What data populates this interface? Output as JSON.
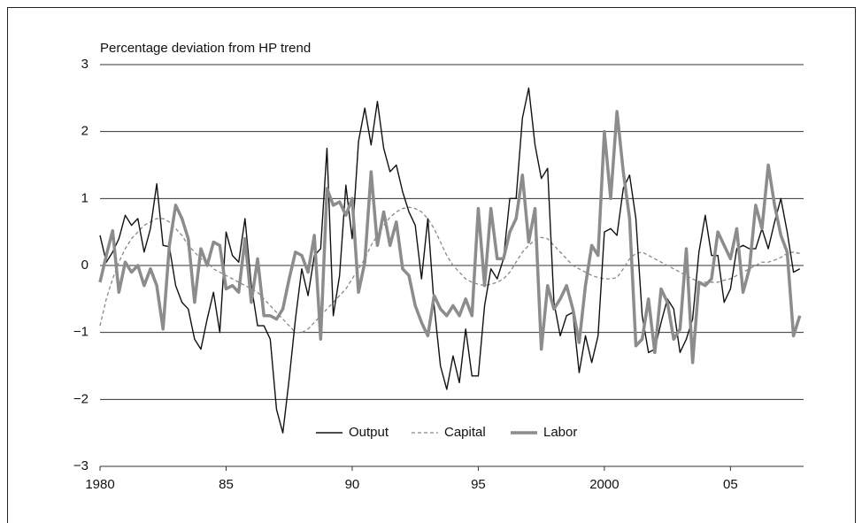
{
  "chart_data": {
    "type": "line",
    "title": "Percentage deviation from HP trend",
    "x": [
      1980,
      1980.25,
      1980.5,
      1980.75,
      1981,
      1981.25,
      1981.5,
      1981.75,
      1982,
      1982.25,
      1982.5,
      1982.75,
      1983,
      1983.25,
      1983.5,
      1983.75,
      1984,
      1984.25,
      1984.5,
      1984.75,
      1985,
      1985.25,
      1985.5,
      1985.75,
      1986,
      1986.25,
      1986.5,
      1986.75,
      1987,
      1987.25,
      1987.5,
      1987.75,
      1988,
      1988.25,
      1988.5,
      1988.75,
      1989,
      1989.25,
      1989.5,
      1989.75,
      1990,
      1990.25,
      1990.5,
      1990.75,
      1991,
      1991.25,
      1991.5,
      1991.75,
      1992,
      1992.25,
      1992.5,
      1992.75,
      1993,
      1993.25,
      1993.5,
      1993.75,
      1994,
      1994.25,
      1994.5,
      1994.75,
      1995,
      1995.25,
      1995.5,
      1995.75,
      1996,
      1996.25,
      1996.5,
      1996.75,
      1997,
      1997.25,
      1997.5,
      1997.75,
      1998,
      1998.25,
      1998.5,
      1998.75,
      1999,
      1999.25,
      1999.5,
      1999.75,
      2000,
      2000.25,
      2000.5,
      2000.75,
      2001,
      2001.25,
      2001.5,
      2001.75,
      2002,
      2002.25,
      2002.5,
      2002.75,
      2003,
      2003.25,
      2003.5,
      2003.75,
      2004,
      2004.25,
      2004.5,
      2004.75,
      2005,
      2005.25,
      2005.5,
      2005.75,
      2006,
      2006.25,
      2006.5,
      2006.75,
      2007,
      2007.25,
      2007.5,
      2007.75
    ],
    "series": [
      {
        "name": "Output",
        "color": "#111111",
        "linestyle": "solid",
        "linewidth": 1.4,
        "values": [
          0.45,
          0.05,
          0.2,
          0.4,
          0.75,
          0.6,
          0.7,
          0.2,
          0.55,
          1.22,
          0.3,
          0.28,
          -0.3,
          -0.55,
          -0.65,
          -1.1,
          -1.25,
          -0.8,
          -0.4,
          -1.0,
          0.5,
          0.15,
          0.05,
          0.7,
          -0.3,
          -0.9,
          -0.9,
          -1.1,
          -2.15,
          -2.5,
          -1.7,
          -0.8,
          -0.05,
          -0.45,
          0.15,
          0.25,
          1.75,
          -0.75,
          -0.15,
          1.2,
          0.4,
          1.85,
          2.35,
          1.8,
          2.45,
          1.75,
          1.4,
          1.5,
          1.1,
          0.8,
          0.6,
          -0.2,
          0.7,
          -0.6,
          -1.5,
          -1.85,
          -1.35,
          -1.75,
          -0.95,
          -1.65,
          -1.65,
          -0.6,
          -0.05,
          -0.2,
          0.1,
          1.0,
          1.0,
          2.2,
          2.65,
          1.8,
          1.3,
          1.45,
          -0.55,
          -1.05,
          -0.75,
          -0.7,
          -1.6,
          -1.05,
          -1.45,
          -1.05,
          0.5,
          0.55,
          0.45,
          1.15,
          1.35,
          0.7,
          -0.75,
          -1.3,
          -1.25,
          -0.85,
          -0.5,
          -0.65,
          -1.3,
          -1.1,
          -0.8,
          0.2,
          0.75,
          0.15,
          0.15,
          -0.55,
          -0.35,
          0.25,
          0.3,
          0.25,
          0.25,
          0.55,
          0.25,
          0.65,
          1.0,
          0.5,
          -0.1,
          -0.05
        ]
      },
      {
        "name": "Capital",
        "color": "#888888",
        "linestyle": "dashed",
        "linewidth": 1.3,
        "values": [
          -0.9,
          -0.5,
          -0.2,
          0.05,
          0.25,
          0.4,
          0.5,
          0.6,
          0.65,
          0.7,
          0.7,
          0.65,
          0.55,
          0.45,
          0.3,
          0.2,
          0.1,
          0.05,
          -0.05,
          -0.1,
          -0.15,
          -0.2,
          -0.25,
          -0.3,
          -0.35,
          -0.4,
          -0.5,
          -0.6,
          -0.7,
          -0.8,
          -0.9,
          -1.0,
          -1.0,
          -0.95,
          -0.85,
          -0.75,
          -0.65,
          -0.55,
          -0.45,
          -0.35,
          -0.2,
          -0.05,
          0.1,
          0.3,
          0.45,
          0.6,
          0.72,
          0.8,
          0.85,
          0.87,
          0.85,
          0.8,
          0.7,
          0.55,
          0.35,
          0.15,
          0.0,
          -0.1,
          -0.2,
          -0.25,
          -0.28,
          -0.3,
          -0.28,
          -0.25,
          -0.2,
          -0.1,
          0.05,
          0.2,
          0.3,
          0.38,
          0.42,
          0.4,
          0.3,
          0.2,
          0.1,
          0.0,
          -0.05,
          -0.1,
          -0.15,
          -0.18,
          -0.2,
          -0.2,
          -0.18,
          -0.05,
          0.1,
          0.18,
          0.2,
          0.15,
          0.1,
          0.05,
          0.0,
          -0.05,
          -0.1,
          -0.15,
          -0.2,
          -0.25,
          -0.25,
          -0.25,
          -0.25,
          -0.22,
          -0.2,
          -0.15,
          -0.1,
          -0.05,
          0.0,
          0.05,
          0.05,
          0.08,
          0.12,
          0.18,
          0.2,
          0.18
        ]
      },
      {
        "name": "Labor",
        "color": "#8c8c8c",
        "linestyle": "solid",
        "linewidth": 3.5,
        "values": [
          -0.25,
          0.15,
          0.52,
          -0.4,
          0.05,
          -0.1,
          0.0,
          -0.3,
          -0.05,
          -0.3,
          -0.95,
          0.3,
          0.9,
          0.7,
          0.4,
          -0.55,
          0.25,
          0.0,
          0.35,
          0.3,
          -0.35,
          -0.3,
          -0.4,
          0.4,
          -0.55,
          0.1,
          -0.75,
          -0.75,
          -0.8,
          -0.65,
          -0.2,
          0.2,
          0.15,
          -0.1,
          0.45,
          -1.1,
          1.15,
          0.9,
          0.95,
          0.75,
          1.0,
          -0.4,
          0.05,
          1.4,
          0.3,
          0.8,
          0.3,
          0.65,
          -0.05,
          -0.15,
          -0.6,
          -0.85,
          -1.05,
          -0.45,
          -0.65,
          -0.75,
          -0.6,
          -0.75,
          -0.5,
          -0.75,
          0.85,
          -0.3,
          0.85,
          0.1,
          0.1,
          0.5,
          0.7,
          1.35,
          0.35,
          0.85,
          -1.25,
          -0.3,
          -0.65,
          -0.5,
          -0.3,
          -0.65,
          -1.15,
          -0.3,
          0.3,
          0.15,
          2.0,
          1.0,
          2.3,
          1.4,
          0.7,
          -1.2,
          -1.1,
          -0.5,
          -1.3,
          -0.35,
          -0.55,
          -1.1,
          -0.95,
          0.25,
          -1.45,
          -0.25,
          -0.3,
          -0.2,
          0.5,
          0.3,
          0.1,
          0.55,
          -0.4,
          -0.05,
          0.9,
          0.55,
          1.5,
          0.9,
          0.45,
          0.2,
          -1.05,
          -0.75
        ]
      }
    ],
    "xlim": [
      1980,
      2007.9
    ],
    "xticks": [
      1980,
      {
        "value": 1985,
        "label": "85"
      },
      {
        "value": 1990,
        "label": "90"
      },
      {
        "value": 1995,
        "label": "95"
      },
      2000,
      {
        "value": 2005,
        "label": "05"
      }
    ],
    "ylim": [
      -3,
      3
    ],
    "yticks": [
      {
        "value": -3,
        "label": "−3"
      },
      {
        "value": -2,
        "label": "−2"
      },
      {
        "value": -1,
        "label": "−1"
      },
      0,
      1,
      2,
      3
    ],
    "grid": true,
    "legend": "bottom"
  }
}
